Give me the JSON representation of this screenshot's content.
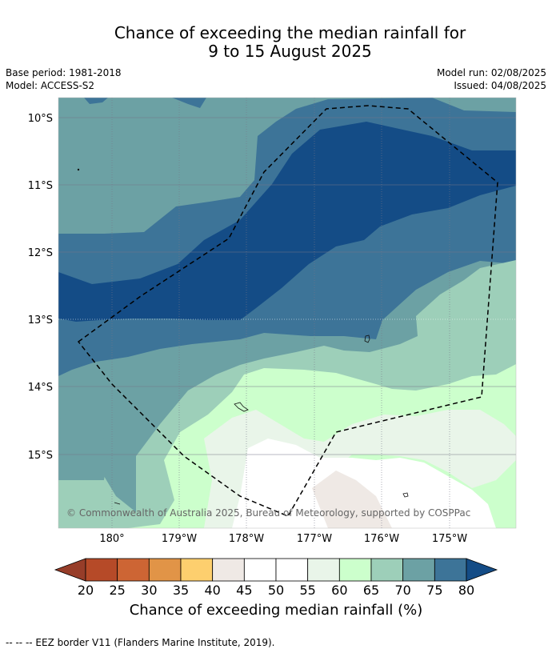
{
  "title_line1": "Chance of exceeding the median rainfall for",
  "title_line2": "9 to 15 August 2025",
  "base_period": "Base period: 1981-2018",
  "model": "Model: ACCESS-S2",
  "model_run": "Model run: 02/08/2025",
  "issued": "Issued: 04/08/2025",
  "copyright": "© Commonwealth of Australia 2025, Bureau of Meteorology, supported by COSPPac",
  "lat_labels": [
    "10°S",
    "11°S",
    "12°S",
    "13°S",
    "14°S",
    "15°S"
  ],
  "lon_labels": [
    "180°",
    "179°W",
    "178°W",
    "177°W",
    "176°W",
    "175°W"
  ],
  "colorbar": {
    "ticks": [
      "20",
      "25",
      "30",
      "35",
      "40",
      "45",
      "50",
      "55",
      "60",
      "65",
      "70",
      "75",
      "80"
    ],
    "colors": [
      "#b64a28",
      "#cd6534",
      "#e19447",
      "#fdcf6e",
      "#efe9e5",
      "#ffffff",
      "#ffffff",
      "#e9f5e9",
      "#ccffcc",
      "#9dcfb9",
      "#6ca1a4",
      "#3d7498",
      "#144c86"
    ],
    "under_color": "#973d29",
    "over_color": "#144c86",
    "label": "Chance of exceeding median rainfall (%)"
  },
  "footnote": "--  --  -- EEZ border V11 (Flanders Marine Institute, 2019)."
}
